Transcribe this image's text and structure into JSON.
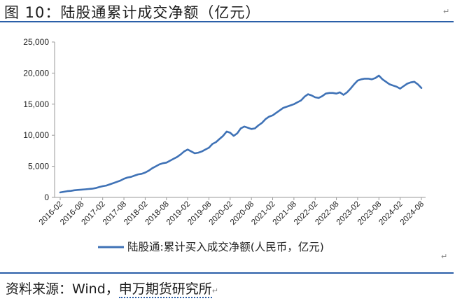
{
  "figure": {
    "title": "图 10：陆股通累计成交净额（亿元）",
    "mark": "↵"
  },
  "source": {
    "prefix": "资料来源：Wind，",
    "name": "申万期货研究所"
  },
  "colors": {
    "line": "#3f72b6",
    "axis": "#9a9a9a",
    "rule": "#2b5fa8"
  },
  "chart_data": {
    "type": "line",
    "y_ticks": [
      "0",
      "5,000",
      "10,000",
      "15,000",
      "20,000",
      "25,000"
    ],
    "ylim": [
      0,
      25000
    ],
    "categories": [
      "2016-02",
      "2016-08",
      "2017-02",
      "2017-08",
      "2018-02",
      "2018-08",
      "2019-02",
      "2019-08",
      "2020-02",
      "2020-08",
      "2021-02",
      "2021-08",
      "2022-02",
      "2022-08",
      "2023-02",
      "2023-08",
      "2024-02",
      "2024-08"
    ],
    "grid": false,
    "legend_position": "bottom",
    "series": [
      {
        "name": "陆股通:累计买入成交净额(人民币，亿元)",
        "x": [
          "2016-02",
          "2016-03",
          "2016-04",
          "2016-05",
          "2016-06",
          "2016-07",
          "2016-08",
          "2016-09",
          "2016-10",
          "2016-11",
          "2016-12",
          "2017-01",
          "2017-02",
          "2017-03",
          "2017-04",
          "2017-05",
          "2017-06",
          "2017-07",
          "2017-08",
          "2017-09",
          "2017-10",
          "2017-11",
          "2017-12",
          "2018-01",
          "2018-02",
          "2018-03",
          "2018-04",
          "2018-05",
          "2018-06",
          "2018-07",
          "2018-08",
          "2018-09",
          "2018-10",
          "2018-11",
          "2018-12",
          "2019-01",
          "2019-02",
          "2019-03",
          "2019-04",
          "2019-05",
          "2019-06",
          "2019-07",
          "2019-08",
          "2019-09",
          "2019-10",
          "2019-11",
          "2019-12",
          "2020-01",
          "2020-02",
          "2020-03",
          "2020-04",
          "2020-05",
          "2020-06",
          "2020-07",
          "2020-08",
          "2020-09",
          "2020-10",
          "2020-11",
          "2020-12",
          "2021-01",
          "2021-02",
          "2021-03",
          "2021-04",
          "2021-05",
          "2021-06",
          "2021-07",
          "2021-08",
          "2021-09",
          "2021-10",
          "2021-11",
          "2021-12",
          "2022-01",
          "2022-02",
          "2022-03",
          "2022-04",
          "2022-05",
          "2022-06",
          "2022-07",
          "2022-08",
          "2022-09",
          "2022-10",
          "2022-11",
          "2022-12",
          "2023-01",
          "2023-02",
          "2023-03",
          "2023-04",
          "2023-05",
          "2023-06",
          "2023-07",
          "2023-08",
          "2023-09",
          "2023-10",
          "2023-11",
          "2023-12",
          "2024-01",
          "2024-02",
          "2024-03",
          "2024-04",
          "2024-05",
          "2024-06",
          "2024-07",
          "2024-08"
        ],
        "values": [
          800,
          900,
          1000,
          1050,
          1150,
          1200,
          1250,
          1300,
          1350,
          1400,
          1500,
          1650,
          1800,
          1900,
          2100,
          2300,
          2500,
          2700,
          3000,
          3200,
          3300,
          3500,
          3700,
          3800,
          4000,
          4300,
          4700,
          5000,
          5300,
          5500,
          5600,
          5900,
          6200,
          6500,
          6900,
          7400,
          7700,
          7400,
          7100,
          7200,
          7400,
          7700,
          8000,
          8600,
          8900,
          9400,
          9900,
          10600,
          10400,
          9900,
          10300,
          11100,
          11400,
          11200,
          11000,
          11100,
          11600,
          12000,
          12600,
          13000,
          13200,
          13600,
          14000,
          14400,
          14600,
          14800,
          15000,
          15300,
          15600,
          16200,
          16600,
          16400,
          16100,
          16000,
          16300,
          16700,
          16800,
          16800,
          16700,
          16900,
          16500,
          16900,
          17500,
          18200,
          18800,
          19000,
          19100,
          19100,
          19000,
          19200,
          19600,
          19000,
          18600,
          18200,
          18000,
          17800,
          17500,
          17900,
          18300,
          18500,
          18600,
          18200,
          17600
        ]
      }
    ]
  }
}
